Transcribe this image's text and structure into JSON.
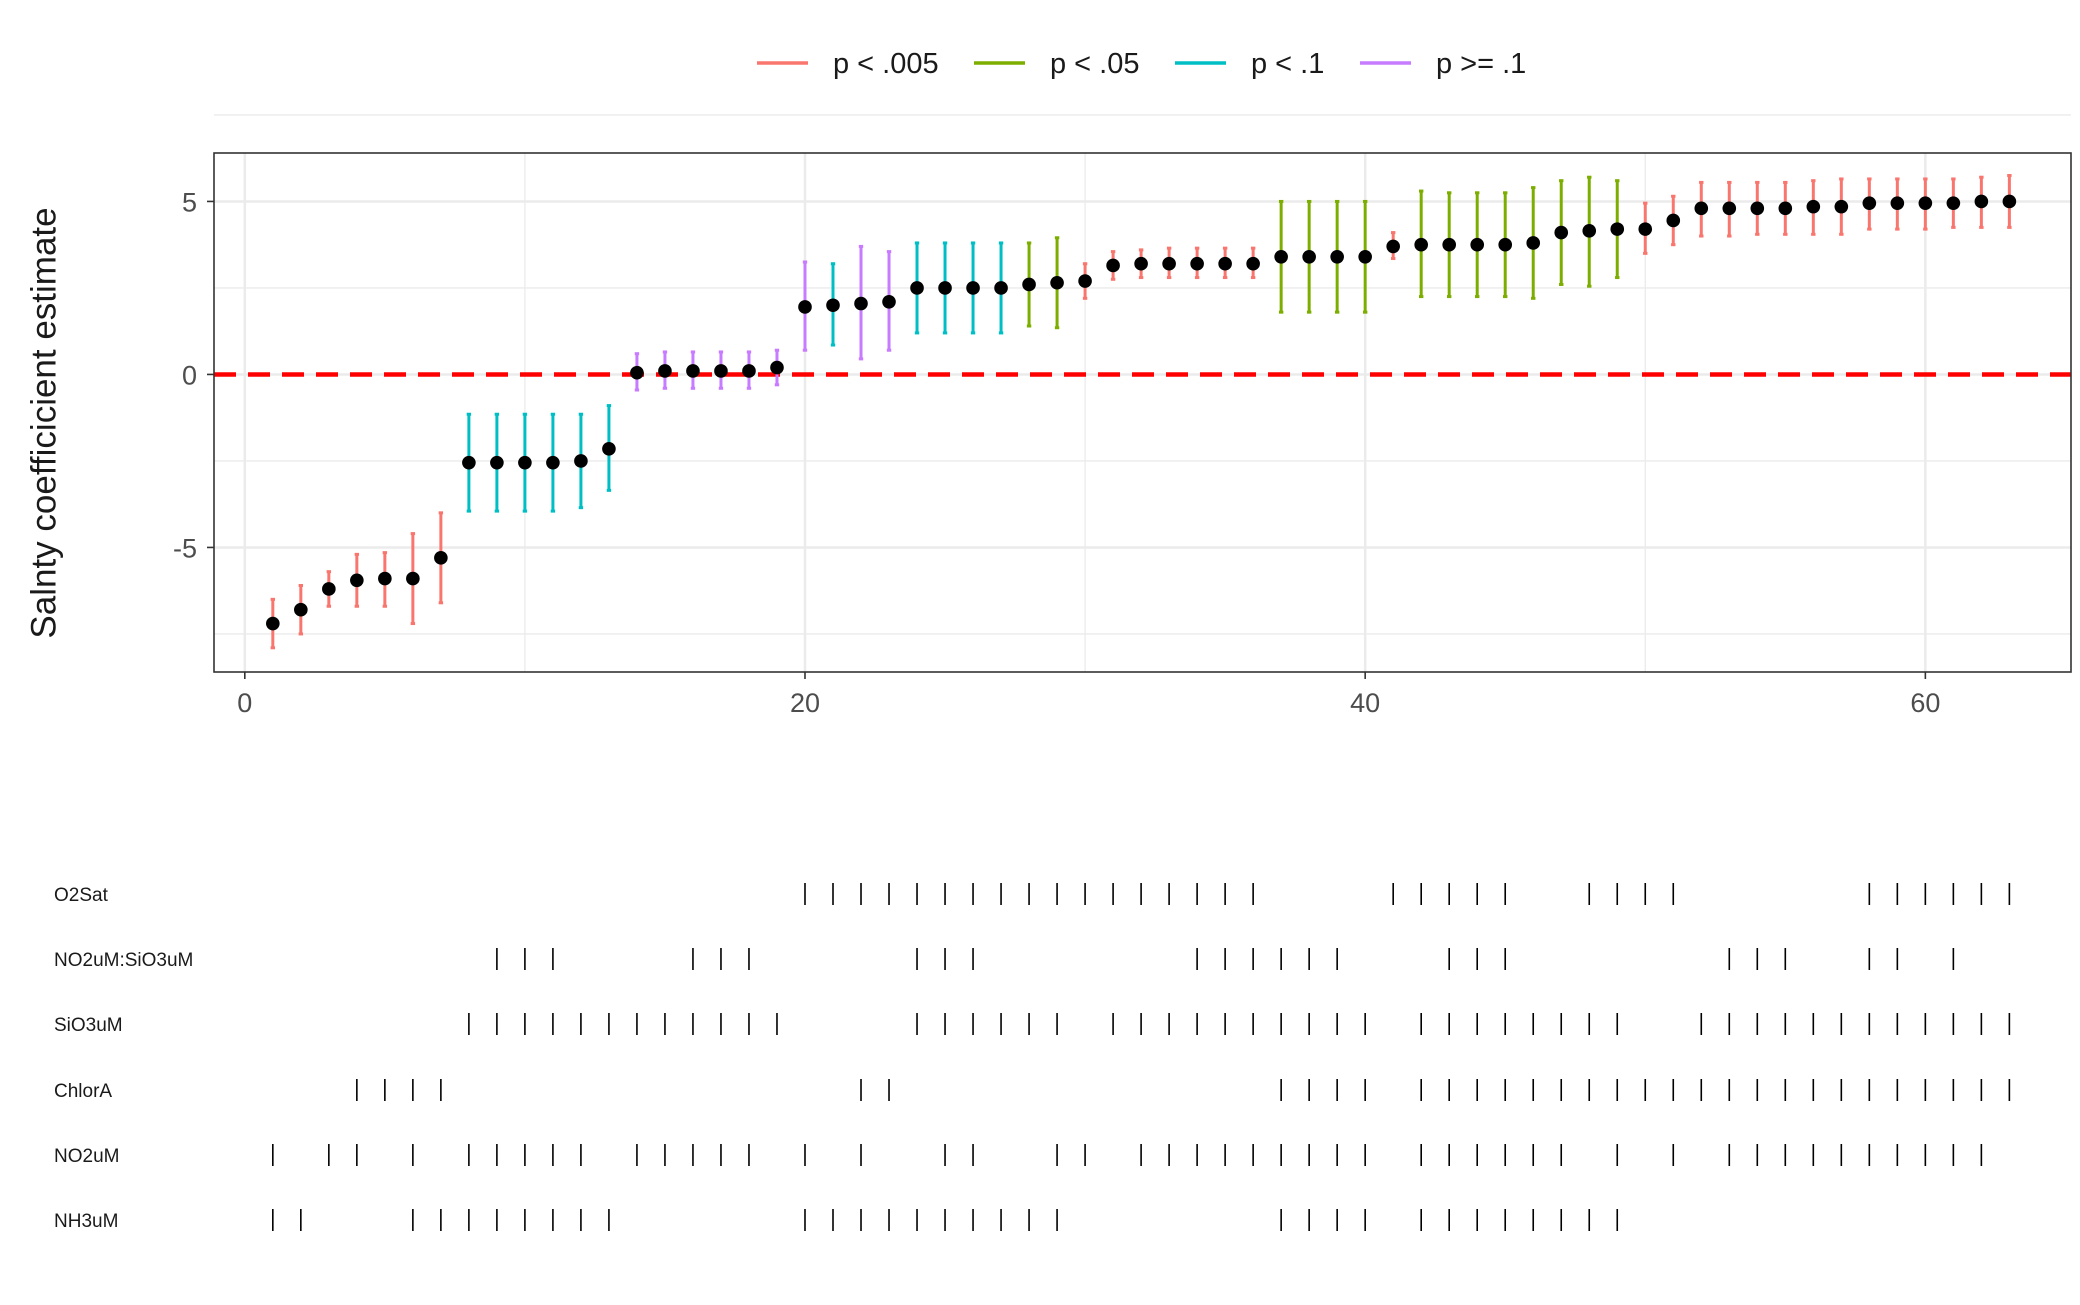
{
  "chart_data": {
    "type": "scatter",
    "subtype": "coefficient point estimates with error bars, sorted by estimate, plus indicator rows",
    "ylabel": "Salnty coefficicient estimate",
    "xlabel": "",
    "xlim": [
      -1.1,
      65.2
    ],
    "ylim": [
      -8.6,
      6.4
    ],
    "x_ticks": [
      0,
      20,
      40,
      60
    ],
    "y_ticks": [
      5,
      0,
      -5
    ],
    "grid": true,
    "reference_line": {
      "y": 0,
      "style": "dashed",
      "color": "#ff0000"
    },
    "legend": {
      "position": "top",
      "entries": [
        {
          "label": "p < .005",
          "key": "a",
          "color": "#F8766D"
        },
        {
          "label": "p < .05",
          "key": "b",
          "color": "#7CAE00"
        },
        {
          "label": "p < .1",
          "key": "c",
          "color": "#00BFC4"
        },
        {
          "label": "p >= .1",
          "key": "d",
          "color": "#C77CFF"
        }
      ]
    },
    "points": [
      {
        "x": 1,
        "y": -7.2,
        "lo": -7.9,
        "hi": -6.5,
        "p": "a"
      },
      {
        "x": 2,
        "y": -6.8,
        "lo": -7.5,
        "hi": -6.1,
        "p": "a"
      },
      {
        "x": 3,
        "y": -6.2,
        "lo": -6.7,
        "hi": -5.7,
        "p": "a"
      },
      {
        "x": 4,
        "y": -5.95,
        "lo": -6.7,
        "hi": -5.2,
        "p": "a"
      },
      {
        "x": 5,
        "y": -5.9,
        "lo": -6.7,
        "hi": -5.15,
        "p": "a"
      },
      {
        "x": 6,
        "y": -5.9,
        "lo": -7.2,
        "hi": -4.6,
        "p": "a"
      },
      {
        "x": 7,
        "y": -5.3,
        "lo": -6.6,
        "hi": -4.0,
        "p": "a"
      },
      {
        "x": 8,
        "y": -2.55,
        "lo": -3.95,
        "hi": -1.15,
        "p": "c"
      },
      {
        "x": 9,
        "y": -2.55,
        "lo": -3.95,
        "hi": -1.15,
        "p": "c"
      },
      {
        "x": 10,
        "y": -2.55,
        "lo": -3.95,
        "hi": -1.15,
        "p": "c"
      },
      {
        "x": 11,
        "y": -2.55,
        "lo": -3.95,
        "hi": -1.15,
        "p": "c"
      },
      {
        "x": 12,
        "y": -2.5,
        "lo": -3.85,
        "hi": -1.15,
        "p": "c"
      },
      {
        "x": 13,
        "y": -2.15,
        "lo": -3.35,
        "hi": -0.9,
        "p": "c"
      },
      {
        "x": 14,
        "y": 0.05,
        "lo": -0.45,
        "hi": 0.6,
        "p": "d"
      },
      {
        "x": 15,
        "y": 0.1,
        "lo": -0.4,
        "hi": 0.65,
        "p": "d"
      },
      {
        "x": 16,
        "y": 0.1,
        "lo": -0.4,
        "hi": 0.65,
        "p": "d"
      },
      {
        "x": 17,
        "y": 0.1,
        "lo": -0.4,
        "hi": 0.65,
        "p": "d"
      },
      {
        "x": 18,
        "y": 0.1,
        "lo": -0.4,
        "hi": 0.65,
        "p": "d"
      },
      {
        "x": 19,
        "y": 0.2,
        "lo": -0.3,
        "hi": 0.7,
        "p": "d"
      },
      {
        "x": 20,
        "y": 1.95,
        "lo": 0.7,
        "hi": 3.25,
        "p": "d"
      },
      {
        "x": 21,
        "y": 2.0,
        "lo": 0.85,
        "hi": 3.2,
        "p": "c"
      },
      {
        "x": 22,
        "y": 2.05,
        "lo": 0.45,
        "hi": 3.7,
        "p": "d"
      },
      {
        "x": 23,
        "y": 2.1,
        "lo": 0.7,
        "hi": 3.55,
        "p": "d"
      },
      {
        "x": 24,
        "y": 2.5,
        "lo": 1.2,
        "hi": 3.8,
        "p": "c"
      },
      {
        "x": 25,
        "y": 2.5,
        "lo": 1.2,
        "hi": 3.8,
        "p": "c"
      },
      {
        "x": 26,
        "y": 2.5,
        "lo": 1.2,
        "hi": 3.8,
        "p": "c"
      },
      {
        "x": 27,
        "y": 2.5,
        "lo": 1.2,
        "hi": 3.8,
        "p": "c"
      },
      {
        "x": 28,
        "y": 2.6,
        "lo": 1.4,
        "hi": 3.8,
        "p": "b"
      },
      {
        "x": 29,
        "y": 2.65,
        "lo": 1.35,
        "hi": 3.95,
        "p": "b"
      },
      {
        "x": 30,
        "y": 2.7,
        "lo": 2.2,
        "hi": 3.2,
        "p": "a"
      },
      {
        "x": 31,
        "y": 3.15,
        "lo": 2.75,
        "hi": 3.55,
        "p": "a"
      },
      {
        "x": 32,
        "y": 3.2,
        "lo": 2.8,
        "hi": 3.6,
        "p": "a"
      },
      {
        "x": 33,
        "y": 3.2,
        "lo": 2.8,
        "hi": 3.65,
        "p": "a"
      },
      {
        "x": 34,
        "y": 3.2,
        "lo": 2.8,
        "hi": 3.65,
        "p": "a"
      },
      {
        "x": 35,
        "y": 3.2,
        "lo": 2.8,
        "hi": 3.65,
        "p": "a"
      },
      {
        "x": 36,
        "y": 3.2,
        "lo": 2.8,
        "hi": 3.65,
        "p": "a"
      },
      {
        "x": 37,
        "y": 3.4,
        "lo": 1.8,
        "hi": 5.0,
        "p": "b"
      },
      {
        "x": 38,
        "y": 3.4,
        "lo": 1.8,
        "hi": 5.0,
        "p": "b"
      },
      {
        "x": 39,
        "y": 3.4,
        "lo": 1.8,
        "hi": 5.0,
        "p": "b"
      },
      {
        "x": 40,
        "y": 3.4,
        "lo": 1.8,
        "hi": 5.0,
        "p": "b"
      },
      {
        "x": 41,
        "y": 3.7,
        "lo": 3.35,
        "hi": 4.1,
        "p": "a"
      },
      {
        "x": 42,
        "y": 3.75,
        "lo": 2.25,
        "hi": 5.3,
        "p": "b"
      },
      {
        "x": 43,
        "y": 3.75,
        "lo": 2.25,
        "hi": 5.25,
        "p": "b"
      },
      {
        "x": 44,
        "y": 3.75,
        "lo": 2.25,
        "hi": 5.25,
        "p": "b"
      },
      {
        "x": 45,
        "y": 3.75,
        "lo": 2.25,
        "hi": 5.25,
        "p": "b"
      },
      {
        "x": 46,
        "y": 3.8,
        "lo": 2.2,
        "hi": 5.4,
        "p": "b"
      },
      {
        "x": 47,
        "y": 4.1,
        "lo": 2.6,
        "hi": 5.6,
        "p": "b"
      },
      {
        "x": 48,
        "y": 4.15,
        "lo": 2.55,
        "hi": 5.7,
        "p": "b"
      },
      {
        "x": 49,
        "y": 4.2,
        "lo": 2.8,
        "hi": 5.6,
        "p": "b"
      },
      {
        "x": 50,
        "y": 4.2,
        "lo": 3.5,
        "hi": 4.95,
        "p": "a"
      },
      {
        "x": 51,
        "y": 4.45,
        "lo": 3.75,
        "hi": 5.15,
        "p": "a"
      },
      {
        "x": 52,
        "y": 4.8,
        "lo": 4.0,
        "hi": 5.55,
        "p": "a"
      },
      {
        "x": 53,
        "y": 4.8,
        "lo": 4.0,
        "hi": 5.55,
        "p": "a"
      },
      {
        "x": 54,
        "y": 4.8,
        "lo": 4.05,
        "hi": 5.55,
        "p": "a"
      },
      {
        "x": 55,
        "y": 4.8,
        "lo": 4.05,
        "hi": 5.55,
        "p": "a"
      },
      {
        "x": 56,
        "y": 4.85,
        "lo": 4.05,
        "hi": 5.6,
        "p": "a"
      },
      {
        "x": 57,
        "y": 4.85,
        "lo": 4.05,
        "hi": 5.65,
        "p": "a"
      },
      {
        "x": 58,
        "y": 4.95,
        "lo": 4.2,
        "hi": 5.65,
        "p": "a"
      },
      {
        "x": 59,
        "y": 4.95,
        "lo": 4.2,
        "hi": 5.65,
        "p": "a"
      },
      {
        "x": 60,
        "y": 4.95,
        "lo": 4.2,
        "hi": 5.65,
        "p": "a"
      },
      {
        "x": 61,
        "y": 4.95,
        "lo": 4.25,
        "hi": 5.65,
        "p": "a"
      },
      {
        "x": 62,
        "y": 5.0,
        "lo": 4.25,
        "hi": 5.7,
        "p": "a"
      },
      {
        "x": 63,
        "y": 5.0,
        "lo": 4.25,
        "hi": 5.75,
        "p": "a"
      }
    ],
    "indicator_rows": [
      {
        "label": "O2Sat",
        "x": [
          20,
          21,
          22,
          23,
          24,
          25,
          26,
          27,
          28,
          29,
          30,
          31,
          32,
          33,
          34,
          35,
          36,
          41,
          42,
          43,
          44,
          45,
          48,
          49,
          50,
          51,
          58,
          59,
          60,
          61,
          62,
          63
        ]
      },
      {
        "label": "NO2uM:SiO3uM",
        "x": [
          9,
          10,
          11,
          16,
          17,
          18,
          24,
          25,
          26,
          34,
          35,
          36,
          37,
          38,
          39,
          43,
          44,
          45,
          53,
          54,
          55,
          58,
          59,
          61
        ]
      },
      {
        "label": "SiO3uM",
        "x": [
          8,
          9,
          10,
          11,
          12,
          13,
          14,
          15,
          16,
          17,
          18,
          19,
          24,
          25,
          26,
          27,
          28,
          29,
          31,
          32,
          33,
          34,
          35,
          36,
          37,
          38,
          39,
          40,
          42,
          43,
          44,
          45,
          46,
          47,
          48,
          49,
          52,
          53,
          54,
          55,
          56,
          57,
          58,
          59,
          60,
          61,
          62,
          63
        ]
      },
      {
        "label": "ChlorA",
        "x": [
          4,
          5,
          6,
          7,
          22,
          23,
          37,
          38,
          39,
          40,
          42,
          43,
          44,
          45,
          46,
          47,
          48,
          49,
          50,
          51,
          52,
          53,
          54,
          55,
          56,
          57,
          58,
          59,
          60,
          61,
          62,
          63
        ]
      },
      {
        "label": "NO2uM",
        "x": [
          1,
          3,
          4,
          6,
          8,
          9,
          10,
          11,
          12,
          14,
          15,
          16,
          17,
          18,
          20,
          22,
          25,
          26,
          29,
          30,
          32,
          33,
          34,
          35,
          36,
          37,
          38,
          39,
          40,
          42,
          43,
          44,
          45,
          46,
          47,
          49,
          51,
          53,
          54,
          55,
          56,
          57,
          58,
          59,
          60,
          61,
          62
        ]
      },
      {
        "label": "NH3uM",
        "x": [
          1,
          2,
          6,
          7,
          8,
          9,
          10,
          11,
          12,
          13,
          20,
          21,
          22,
          23,
          24,
          25,
          26,
          27,
          28,
          29,
          37,
          38,
          39,
          40,
          42,
          43,
          44,
          45,
          46,
          47,
          48,
          49
        ]
      }
    ]
  }
}
